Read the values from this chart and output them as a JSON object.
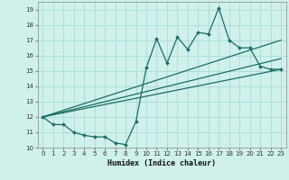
{
  "title": "",
  "xlabel": "Humidex (Indice chaleur)",
  "bg_color": "#cff0eb",
  "grid_color": "#b0ddd8",
  "line_color": "#1a6e62",
  "xlim": [
    -0.5,
    23.5
  ],
  "ylim": [
    10,
    19.5
  ],
  "yticks": [
    10,
    11,
    12,
    13,
    14,
    15,
    16,
    17,
    18,
    19
  ],
  "xticks": [
    0,
    1,
    2,
    3,
    4,
    5,
    6,
    7,
    8,
    9,
    10,
    11,
    12,
    13,
    14,
    15,
    16,
    17,
    18,
    19,
    20,
    21,
    22,
    23
  ],
  "main_x": [
    0,
    1,
    2,
    3,
    4,
    5,
    6,
    7,
    8,
    9,
    10,
    11,
    12,
    13,
    14,
    15,
    16,
    17,
    18,
    19,
    20,
    21,
    22,
    23
  ],
  "main_y": [
    12.0,
    11.5,
    11.5,
    11.0,
    10.8,
    10.7,
    10.7,
    10.3,
    10.2,
    11.7,
    15.2,
    17.1,
    15.5,
    17.2,
    16.4,
    17.5,
    17.4,
    19.1,
    17.0,
    16.5,
    16.5,
    15.3,
    15.1,
    15.1
  ],
  "line1_x": [
    0,
    23
  ],
  "line1_y": [
    12.0,
    17.0
  ],
  "line2_x": [
    0,
    23
  ],
  "line2_y": [
    12.0,
    15.8
  ],
  "line3_x": [
    0,
    23
  ],
  "line3_y": [
    12.0,
    15.1
  ]
}
